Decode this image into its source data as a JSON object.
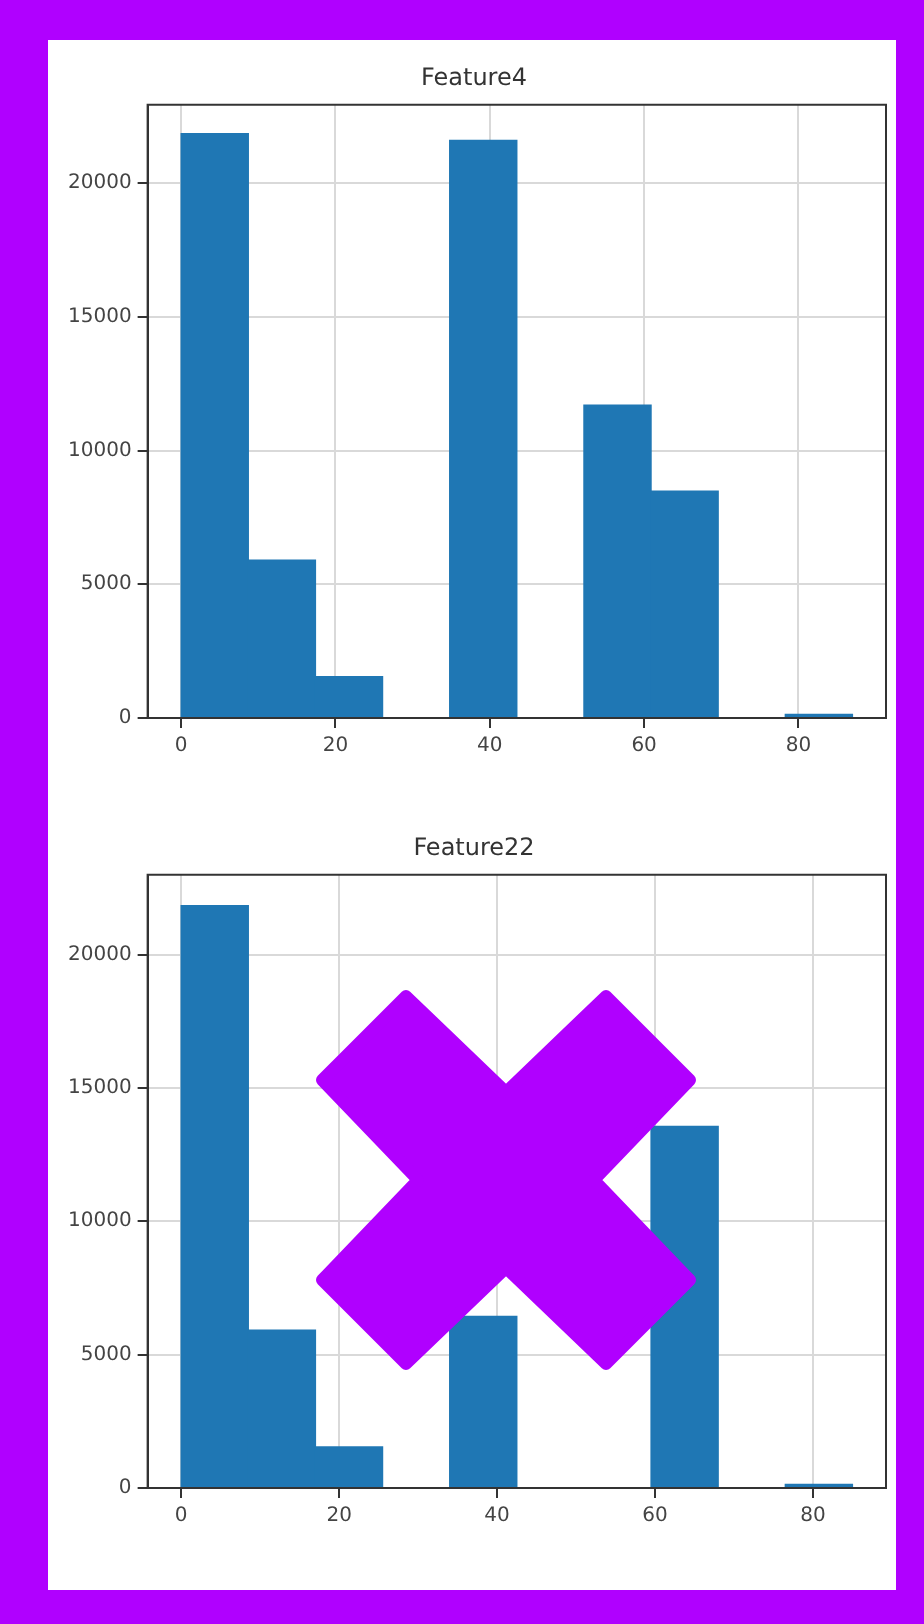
{
  "chart_data": [
    {
      "type": "histogram",
      "title": "Feature4",
      "bins": [
        0,
        8.7,
        17.4,
        26.1,
        34.8,
        43.5,
        52.2,
        60.9,
        69.6,
        78.3,
        87
      ],
      "values": [
        21850,
        5900,
        1550,
        0,
        21600,
        0,
        11700,
        8480,
        0,
        130
      ],
      "color": "#1f77b4",
      "xlim": [
        -4.35,
        91.35
      ],
      "xticks": [
        0,
        20,
        40,
        60,
        80
      ],
      "ylim": [
        0,
        22930
      ],
      "yticks": [
        0,
        5000,
        10000,
        15000,
        20000
      ],
      "grid": true
    },
    {
      "type": "histogram",
      "title": "Feature22",
      "bins": [
        0,
        8.5,
        17,
        25.5,
        34,
        42.5,
        51,
        59.5,
        68,
        76.5,
        85
      ],
      "values": [
        21830,
        5920,
        1540,
        0,
        6430,
        null,
        null,
        13560,
        0,
        130
      ],
      "color": "#1f77b4",
      "xlim": [
        -4.25,
        89.25
      ],
      "xticks": [
        0,
        20,
        40,
        60,
        80
      ],
      "ylim": [
        0,
        22990
      ],
      "yticks": [
        0,
        5000,
        10000,
        15000,
        20000
      ],
      "grid": true
    }
  ]
}
